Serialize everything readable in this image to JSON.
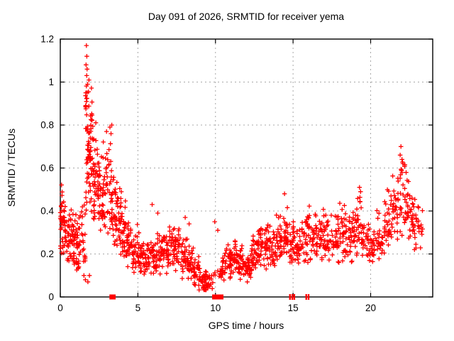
{
  "window": {
    "background": "#ffffff"
  },
  "chart_data": {
    "type": "scatter",
    "title": "Day 091 of 2026, SRMTID for receiver yema",
    "xlabel": "GPS time / hours",
    "ylabel": "SRMTID / TECUs",
    "xlim": [
      0,
      24
    ],
    "ylim": [
      0,
      1.2
    ],
    "xticks": [
      0,
      5,
      10,
      15,
      20
    ],
    "yticks": [
      0,
      0.2,
      0.4,
      0.6,
      0.8,
      1,
      1.2
    ],
    "grid": true,
    "grid_color": "#a8a8a8",
    "border_color": "#000000",
    "legend": "none",
    "marker": {
      "shape": "plus",
      "color": "#ff0000",
      "size": 6.5
    },
    "seed": 91,
    "density_bins": [
      [
        0.0,
        0.15,
        0.18,
        0.57,
        0.33,
        20
      ],
      [
        0.15,
        0.45,
        0.17,
        0.5,
        0.3,
        26
      ],
      [
        0.45,
        0.75,
        0.14,
        0.45,
        0.28,
        30
      ],
      [
        0.75,
        1.05,
        0.1,
        0.42,
        0.25,
        32
      ],
      [
        1.05,
        1.35,
        0.08,
        0.38,
        0.2,
        26
      ],
      [
        1.35,
        1.62,
        0.12,
        0.52,
        0.3,
        20
      ],
      [
        1.62,
        1.85,
        0.38,
        1.1,
        0.6,
        42
      ],
      [
        1.85,
        2.1,
        0.35,
        1.0,
        0.55,
        38
      ],
      [
        2.1,
        2.4,
        0.3,
        0.82,
        0.55,
        34
      ],
      [
        2.4,
        2.7,
        0.28,
        0.72,
        0.5,
        32
      ],
      [
        2.7,
        3.0,
        0.25,
        0.78,
        0.45,
        30
      ],
      [
        3.0,
        3.35,
        0.22,
        0.8,
        0.42,
        30
      ],
      [
        3.35,
        3.65,
        0.2,
        0.66,
        0.38,
        30
      ],
      [
        3.65,
        3.95,
        0.18,
        0.58,
        0.32,
        28
      ],
      [
        3.95,
        4.25,
        0.15,
        0.46,
        0.28,
        28
      ],
      [
        4.25,
        4.6,
        0.12,
        0.38,
        0.24,
        30
      ],
      [
        4.6,
        5.0,
        0.1,
        0.34,
        0.2,
        30
      ],
      [
        5.0,
        5.4,
        0.09,
        0.3,
        0.18,
        30
      ],
      [
        5.4,
        5.8,
        0.08,
        0.28,
        0.16,
        28
      ],
      [
        5.8,
        6.2,
        0.08,
        0.31,
        0.18,
        28
      ],
      [
        6.2,
        6.6,
        0.1,
        0.32,
        0.2,
        30
      ],
      [
        6.6,
        7.0,
        0.1,
        0.34,
        0.22,
        30
      ],
      [
        7.0,
        7.4,
        0.12,
        0.35,
        0.22,
        30
      ],
      [
        7.4,
        7.8,
        0.1,
        0.33,
        0.2,
        30
      ],
      [
        7.8,
        8.2,
        0.08,
        0.31,
        0.18,
        30
      ],
      [
        8.2,
        8.6,
        0.06,
        0.26,
        0.15,
        28
      ],
      [
        8.6,
        9.0,
        0.03,
        0.2,
        0.1,
        30
      ],
      [
        9.0,
        9.45,
        0.02,
        0.15,
        0.06,
        38
      ],
      [
        9.45,
        9.8,
        0.02,
        0.12,
        0.06,
        18
      ],
      [
        9.8,
        10.3,
        0.04,
        0.18,
        0.1,
        7
      ],
      [
        10.3,
        10.7,
        0.07,
        0.22,
        0.13,
        24
      ],
      [
        10.7,
        11.1,
        0.08,
        0.25,
        0.15,
        28
      ],
      [
        11.1,
        11.5,
        0.1,
        0.28,
        0.17,
        30
      ],
      [
        11.5,
        11.9,
        0.08,
        0.26,
        0.15,
        28
      ],
      [
        11.9,
        12.3,
        0.07,
        0.23,
        0.14,
        28
      ],
      [
        12.3,
        12.7,
        0.1,
        0.3,
        0.18,
        30
      ],
      [
        12.7,
        13.1,
        0.12,
        0.38,
        0.22,
        32
      ],
      [
        13.1,
        13.5,
        0.12,
        0.36,
        0.22,
        30
      ],
      [
        13.5,
        13.9,
        0.12,
        0.34,
        0.2,
        28
      ],
      [
        13.9,
        14.3,
        0.14,
        0.42,
        0.25,
        30
      ],
      [
        14.3,
        14.7,
        0.15,
        0.47,
        0.27,
        30
      ],
      [
        14.7,
        15.1,
        0.13,
        0.38,
        0.24,
        28
      ],
      [
        15.1,
        15.5,
        0.12,
        0.36,
        0.22,
        28
      ],
      [
        15.5,
        16.0,
        0.14,
        0.42,
        0.26,
        32
      ],
      [
        16.0,
        16.5,
        0.15,
        0.45,
        0.28,
        32
      ],
      [
        16.5,
        17.0,
        0.15,
        0.43,
        0.27,
        32
      ],
      [
        17.0,
        17.5,
        0.13,
        0.4,
        0.25,
        30
      ],
      [
        17.5,
        18.0,
        0.14,
        0.42,
        0.27,
        30
      ],
      [
        18.0,
        18.5,
        0.15,
        0.47,
        0.3,
        32
      ],
      [
        18.5,
        19.0,
        0.15,
        0.45,
        0.28,
        30
      ],
      [
        19.0,
        19.4,
        0.17,
        0.5,
        0.3,
        28
      ],
      [
        19.4,
        19.9,
        0.15,
        0.42,
        0.26,
        28
      ],
      [
        19.9,
        20.4,
        0.12,
        0.36,
        0.22,
        28
      ],
      [
        20.4,
        20.9,
        0.15,
        0.43,
        0.27,
        28
      ],
      [
        20.9,
        21.4,
        0.2,
        0.52,
        0.3,
        30
      ],
      [
        21.4,
        21.8,
        0.24,
        0.58,
        0.38,
        28
      ],
      [
        21.8,
        22.3,
        0.28,
        0.68,
        0.45,
        30
      ],
      [
        22.3,
        22.7,
        0.25,
        0.6,
        0.4,
        26
      ],
      [
        22.7,
        23.1,
        0.2,
        0.52,
        0.35,
        24
      ],
      [
        23.1,
        23.35,
        0.15,
        0.46,
        0.3,
        10
      ]
    ],
    "points_extra": [
      [
        1.68,
        1.17
      ],
      [
        1.71,
        1.12
      ],
      [
        1.66,
        1.08
      ],
      [
        1.73,
        1.06
      ],
      [
        1.7,
        1.03
      ],
      [
        1.76,
        0.99
      ],
      [
        1.64,
        0.95
      ],
      [
        3.2,
        0.79
      ],
      [
        3.32,
        0.8
      ],
      [
        3.27,
        0.76
      ],
      [
        2.98,
        0.77
      ],
      [
        1.52,
        0.1
      ],
      [
        1.62,
        0.08
      ],
      [
        1.78,
        0.07
      ],
      [
        1.88,
        0.1
      ],
      [
        5.92,
        0.43
      ],
      [
        6.28,
        0.39
      ],
      [
        8.05,
        0.37
      ],
      [
        8.3,
        0.34
      ],
      [
        9.95,
        0.35
      ],
      [
        10.15,
        0.31
      ],
      [
        12.05,
        0.07
      ],
      [
        14.45,
        0.48
      ],
      [
        19.28,
        0.51
      ],
      [
        19.35,
        0.49
      ],
      [
        21.95,
        0.7
      ],
      [
        21.9,
        0.66
      ],
      [
        22.02,
        0.64
      ],
      [
        22.08,
        0.62
      ]
    ],
    "baseline_marks": {
      "ranges": [
        [
          3.28,
          3.45
        ],
        [
          9.9,
          10.4
        ]
      ],
      "singles": [
        14.8,
        14.95,
        15.08,
        15.85,
        16.0
      ]
    }
  },
  "ticks": {
    "x_labels": [
      "0",
      "5",
      "10",
      "15",
      "20"
    ],
    "y_labels": [
      "0",
      "0.2",
      "0.4",
      "0.6",
      "0.8",
      "1",
      "1.2"
    ]
  }
}
